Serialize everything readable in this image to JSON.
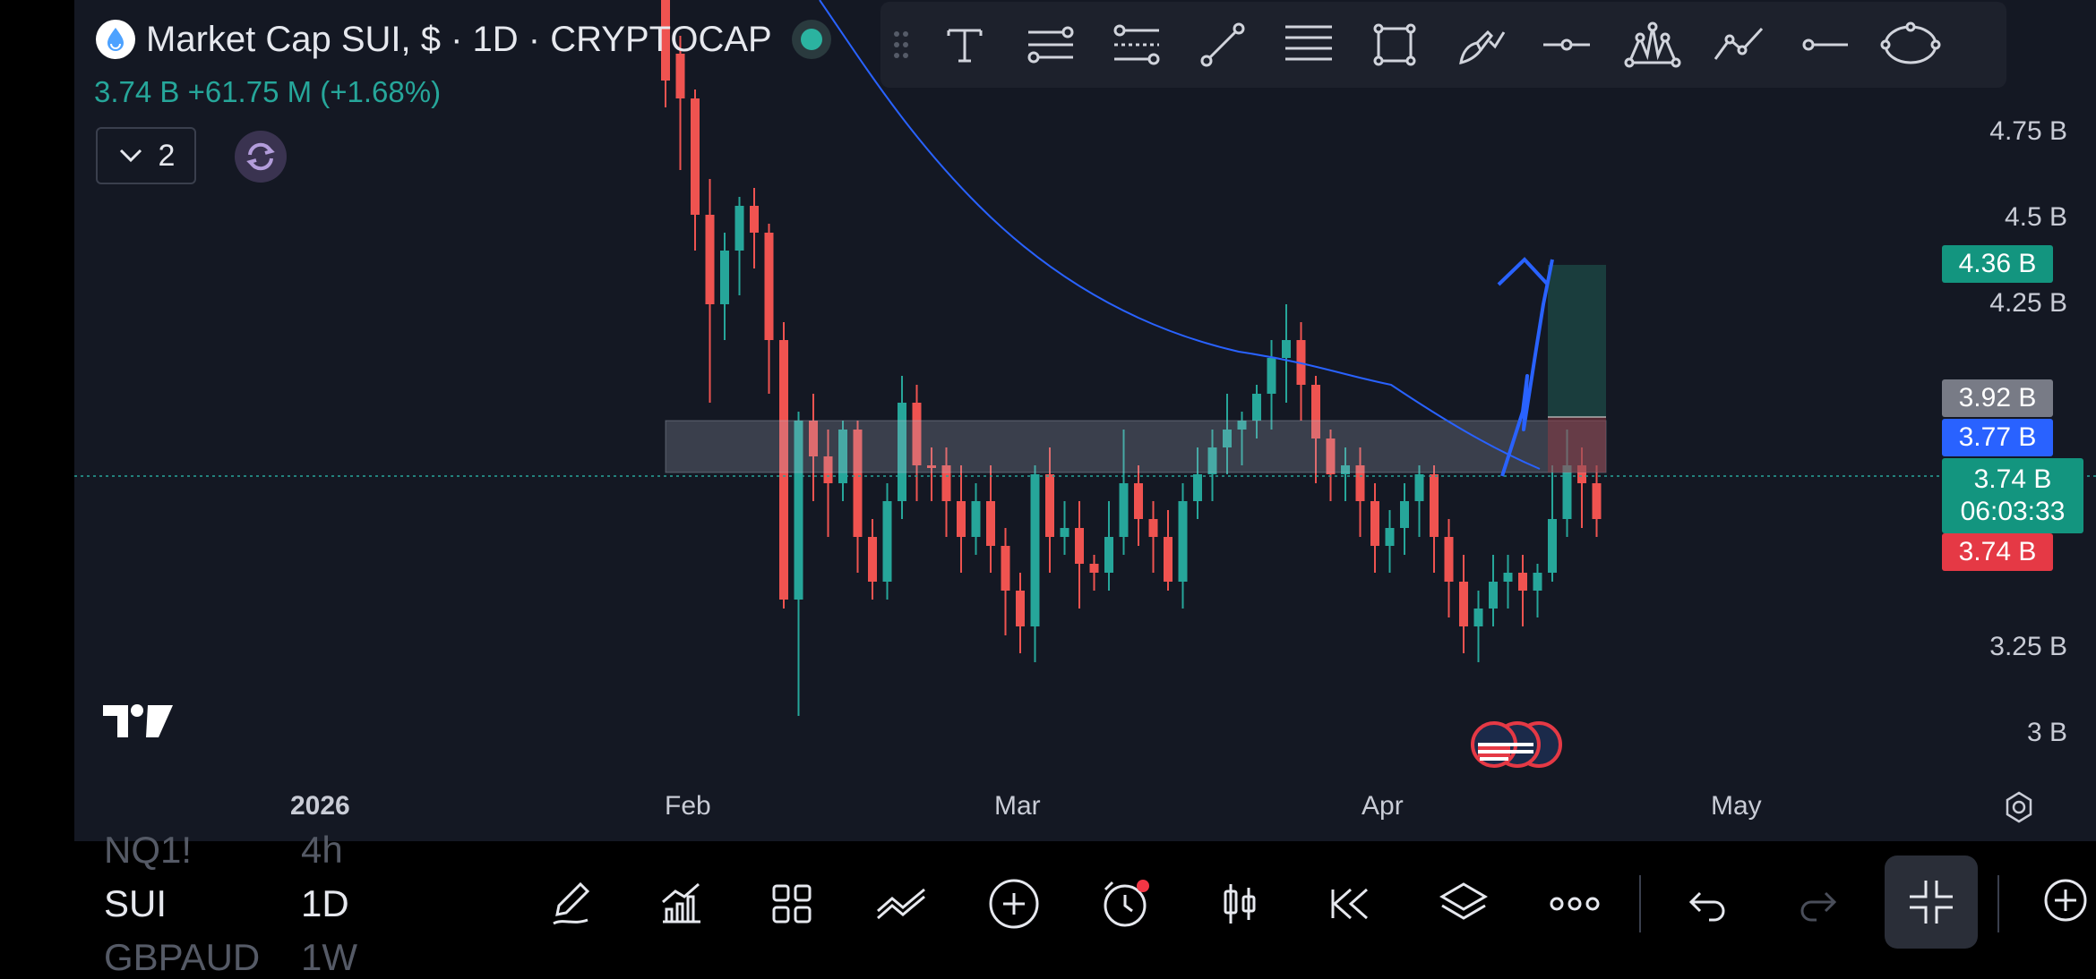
{
  "symbol": {
    "title": "Market Cap SUI, $ · 1D · CRYPTOCAP",
    "price_change": "3.74 B  +61.75 M (+1.68%)",
    "indicator_count": "2"
  },
  "colors": {
    "up": "#26a69a",
    "down": "#ef5350",
    "ma": "#2962ff",
    "background": "#141823"
  },
  "price_axis": [
    "4.75 B",
    "4.5 B",
    "4.25 B",
    "3.25 B",
    "3 B"
  ],
  "badges": {
    "target": "4.36 B",
    "gray": "3.92 B",
    "ma": "3.77 B",
    "last": "3.74 B",
    "countdown": "06:03:33",
    "low": "3.74 B"
  },
  "time_axis": [
    "2026",
    "Feb",
    "Mar",
    "Apr",
    "May"
  ],
  "drawing_tools": [
    "text-tool",
    "parallel-channel-tool",
    "regression-trend-tool",
    "trend-line-tool",
    "fib-retracement-tool",
    "rectangle-tool",
    "brush-tool",
    "horizontal-ray-tool",
    "pattern-tool",
    "path-tool",
    "horizontal-line-tool",
    "ellipse-tool"
  ],
  "watchlist": [
    {
      "symbol": "NQ1!",
      "interval": "4h"
    },
    {
      "symbol": "SUI",
      "interval": "1D"
    },
    {
      "symbol": "GBPAUD",
      "interval": "1W"
    }
  ],
  "bottom_toolbar": [
    "drawing-pen-icon",
    "indicators-icon",
    "layout-grid-icon",
    "compare-icon",
    "add-icon",
    "alert-icon",
    "chart-type-icon",
    "replay-icon",
    "layers-icon",
    "more-icon",
    "undo-icon",
    "redo-icon",
    "exit-fullscreen-icon",
    "add-watchlist-icon"
  ]
}
